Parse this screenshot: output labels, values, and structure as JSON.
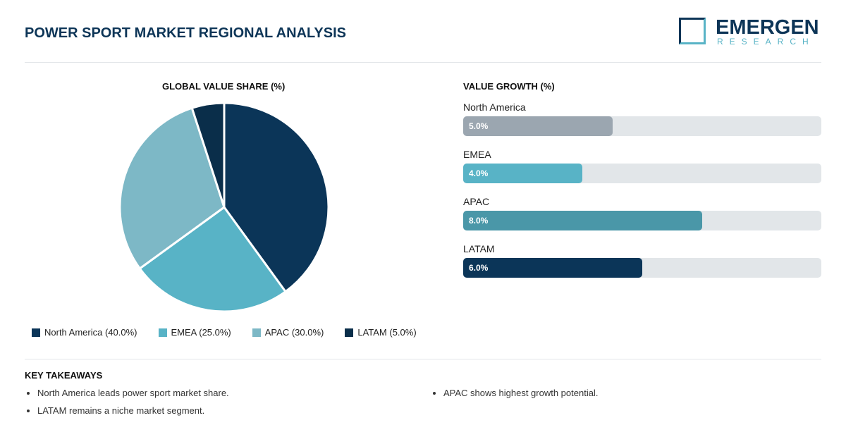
{
  "title": "POWER SPORT MARKET REGIONAL ANALYSIS",
  "logo": {
    "name": "EMERGEN",
    "sub": "RESEARCH"
  },
  "chart_data": [
    {
      "type": "pie",
      "title": "GLOBAL VALUE SHARE (%)",
      "legend_position": "bottom",
      "slices": [
        {
          "label": "North America",
          "value": 40.0,
          "legend": "North America (40.0%)",
          "color": "#0b3558"
        },
        {
          "label": "EMEA",
          "value": 25.0,
          "legend": "EMEA (25.0%)",
          "color": "#58b3c6"
        },
        {
          "label": "APAC",
          "value": 30.0,
          "legend": "APAC (30.0%)",
          "color": "#7db8c6"
        },
        {
          "label": "LATAM",
          "value": 5.0,
          "legend": "LATAM (5.0%)",
          "color": "#0a2e4a"
        }
      ]
    },
    {
      "type": "bar",
      "orientation": "horizontal",
      "title": "VALUE GROWTH (%)",
      "xlim": [
        0,
        12
      ],
      "categories": [
        "North America",
        "EMEA",
        "APAC",
        "LATAM"
      ],
      "values": [
        5.0,
        4.0,
        8.0,
        6.0
      ],
      "labels": [
        "5.0%",
        "4.0%",
        "8.0%",
        "6.0%"
      ],
      "colors": [
        "#9ba6b0",
        "#58b3c6",
        "#4a97a8",
        "#0b3558"
      ]
    }
  ],
  "takeaways": {
    "title": "KEY TAKEAWAYS",
    "items": [
      "North America leads power sport market share.",
      "LATAM remains a niche market segment.",
      "APAC shows highest growth potential."
    ]
  }
}
